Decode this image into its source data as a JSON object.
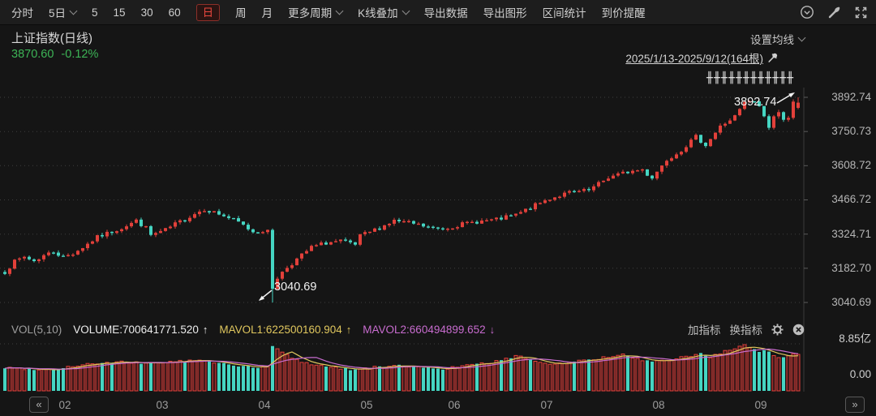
{
  "toolbar": {
    "items": [
      {
        "label": "分时"
      },
      {
        "label": "5日",
        "caret": true
      },
      {
        "label": "5"
      },
      {
        "label": "15"
      },
      {
        "label": "30"
      },
      {
        "label": "60"
      },
      {
        "label": "日",
        "active": true
      },
      {
        "label": "周"
      },
      {
        "label": "月"
      },
      {
        "label": "更多周期",
        "caret": true
      },
      {
        "label": "K线叠加",
        "caret": true
      },
      {
        "label": "导出数据"
      },
      {
        "label": "导出图形"
      },
      {
        "label": "区间统计"
      },
      {
        "label": "到价提醒"
      }
    ],
    "right_icons": [
      "chevron-circle-icon",
      "brush-icon",
      "fullscreen-icon"
    ]
  },
  "header": {
    "title": "上证指数(日线)",
    "price": "3870.60",
    "change": "-0.12%",
    "ma_settings": "设置均线",
    "date_range": "2025/1/13-2025/9/12(164根)"
  },
  "volume_header": {
    "indicator": "VOL(5,10)",
    "volume_label": "VOLUME:700641771.520",
    "volume_dir": "↑",
    "mavol1_label": "MAVOL1:622500160.904",
    "mavol1_dir": "↑",
    "mavol2_label": "MAVOL2:660494899.652",
    "mavol2_dir": "↓",
    "add_indicator": "加指标",
    "switch_indicator": "换指标"
  },
  "volume_axis": {
    "max_label": "8.85亿",
    "min_label": "0.00"
  },
  "x_axis": {
    "prev_button": "«",
    "next_button": "»"
  },
  "chart_data": {
    "type": "candlestick",
    "symbol": "上证指数",
    "period": "日线",
    "title": "上证指数(日线)",
    "bars": 164,
    "date_range": "2025/1/13-2025/9/12",
    "last_close": 3870.6,
    "change_pct": "-0.12%",
    "y_ticks": [
      3892.74,
      3750.73,
      3608.72,
      3466.72,
      3324.71,
      3182.7,
      3040.69
    ],
    "x_ticks": [
      "02",
      "03",
      "04",
      "05",
      "06",
      "07",
      "08",
      "09"
    ],
    "month_start_bars": [
      11,
      31,
      52,
      73,
      91,
      110,
      133,
      154
    ],
    "high_annotation": {
      "text": "3892.74",
      "value": 3892.74,
      "bar": 163
    },
    "low_annotation": {
      "text": "3040.69",
      "value": 3040.69,
      "bar": 55
    },
    "marker_row": "╫╫╫╫╫╫╫╫╫╫╫╫",
    "price_anchors": [
      [
        0,
        3168
      ],
      [
        2,
        3210
      ],
      [
        4,
        3230
      ],
      [
        6,
        3213
      ],
      [
        8,
        3236
      ],
      [
        10,
        3252
      ],
      [
        12,
        3230
      ],
      [
        14,
        3245
      ],
      [
        16,
        3270
      ],
      [
        19,
        3312
      ],
      [
        22,
        3335
      ],
      [
        24,
        3351
      ],
      [
        27,
        3380
      ],
      [
        29,
        3350
      ],
      [
        30,
        3320
      ],
      [
        33,
        3341
      ],
      [
        35,
        3366
      ],
      [
        37,
        3386
      ],
      [
        39,
        3410
      ],
      [
        41,
        3429
      ],
      [
        44,
        3408
      ],
      [
        46,
        3392
      ],
      [
        48,
        3373
      ],
      [
        51,
        3335
      ],
      [
        54,
        3342
      ],
      [
        55,
        3097
      ],
      [
        56,
        3145
      ],
      [
        58,
        3187
      ],
      [
        60,
        3220
      ],
      [
        63,
        3270
      ],
      [
        66,
        3288
      ],
      [
        69,
        3295
      ],
      [
        72,
        3279
      ],
      [
        73,
        3316
      ],
      [
        76,
        3342
      ],
      [
        80,
        3380
      ],
      [
        84,
        3367
      ],
      [
        88,
        3348
      ],
      [
        90,
        3347
      ],
      [
        93,
        3362
      ],
      [
        97,
        3377
      ],
      [
        101,
        3384
      ],
      [
        105,
        3404
      ],
      [
        109,
        3444
      ],
      [
        112,
        3473
      ],
      [
        116,
        3497
      ],
      [
        120,
        3505
      ],
      [
        124,
        3560
      ],
      [
        128,
        3583
      ],
      [
        131,
        3593
      ],
      [
        132,
        3573
      ],
      [
        133,
        3560
      ],
      [
        136,
        3635
      ],
      [
        139,
        3675
      ],
      [
        142,
        3728
      ],
      [
        144,
        3696
      ],
      [
        147,
        3771
      ],
      [
        150,
        3813
      ],
      [
        152,
        3868
      ],
      [
        153,
        3876
      ],
      [
        154,
        3876
      ],
      [
        155,
        3858
      ],
      [
        156,
        3813
      ],
      [
        157,
        3766
      ],
      [
        158,
        3813
      ],
      [
        159,
        3826
      ],
      [
        160,
        3807
      ],
      [
        161,
        3812
      ],
      [
        162,
        3875
      ],
      [
        163,
        3870.6
      ]
    ],
    "pinned_closes": {
      "54": 3342,
      "55": 3097,
      "154": 3876,
      "157": 3766,
      "162": 3875,
      "163": 3870.6
    },
    "volume_anchors": [
      [
        0,
        0.5
      ],
      [
        5,
        0.48
      ],
      [
        10,
        0.46
      ],
      [
        13,
        0.52
      ],
      [
        17,
        0.58
      ],
      [
        20,
        0.6
      ],
      [
        24,
        0.62
      ],
      [
        28,
        0.6
      ],
      [
        32,
        0.62
      ],
      [
        36,
        0.64
      ],
      [
        40,
        0.66
      ],
      [
        44,
        0.6
      ],
      [
        48,
        0.55
      ],
      [
        51,
        0.5
      ],
      [
        54,
        0.52
      ],
      [
        55,
        0.97
      ],
      [
        56,
        0.9
      ],
      [
        57,
        0.85
      ],
      [
        59,
        0.7
      ],
      [
        62,
        0.6
      ],
      [
        65,
        0.55
      ],
      [
        68,
        0.5
      ],
      [
        72,
        0.46
      ],
      [
        75,
        0.5
      ],
      [
        78,
        0.52
      ],
      [
        82,
        0.55
      ],
      [
        86,
        0.5
      ],
      [
        90,
        0.48
      ],
      [
        93,
        0.52
      ],
      [
        96,
        0.56
      ],
      [
        99,
        0.6
      ],
      [
        102,
        0.66
      ],
      [
        104,
        0.72
      ],
      [
        106,
        0.76
      ],
      [
        108,
        0.68
      ],
      [
        110,
        0.62
      ],
      [
        113,
        0.58
      ],
      [
        116,
        0.62
      ],
      [
        119,
        0.66
      ],
      [
        122,
        0.7
      ],
      [
        125,
        0.74
      ],
      [
        127,
        0.78
      ],
      [
        129,
        0.72
      ],
      [
        131,
        0.66
      ],
      [
        133,
        0.62
      ],
      [
        135,
        0.64
      ],
      [
        137,
        0.68
      ],
      [
        139,
        0.72
      ],
      [
        141,
        0.76
      ],
      [
        143,
        0.8
      ],
      [
        145,
        0.74
      ],
      [
        147,
        0.82
      ],
      [
        149,
        0.88
      ],
      [
        151,
        0.95
      ],
      [
        152,
        1.0
      ],
      [
        153,
        0.92
      ],
      [
        154,
        0.88
      ],
      [
        155,
        0.85
      ],
      [
        156,
        0.9
      ],
      [
        157,
        0.86
      ],
      [
        158,
        0.78
      ],
      [
        159,
        0.74
      ],
      [
        160,
        0.72
      ],
      [
        161,
        0.76
      ],
      [
        162,
        0.82
      ],
      [
        163,
        0.79
      ]
    ],
    "pinned_volumes": {
      "55": 0.97,
      "152": 1.0,
      "163": 0.79
    },
    "volume_axis": {
      "max_label": "8.85亿",
      "min_label": "0.00",
      "max_value": 885000000
    },
    "volume_current": 700641771.52,
    "mavol1": 622500160.904,
    "mavol2": 660494899.652,
    "legend_position": "top-left",
    "grid": true,
    "colors": {
      "up": "#e2403a",
      "up_fill_volume": "#40191a",
      "down": "#45d5c2",
      "mavol1": "#e0c75e",
      "mavol2": "#c86ccf",
      "price_text": "#3db456",
      "grid": "#3e3e3e",
      "annotation": "#f2f2f2"
    }
  }
}
